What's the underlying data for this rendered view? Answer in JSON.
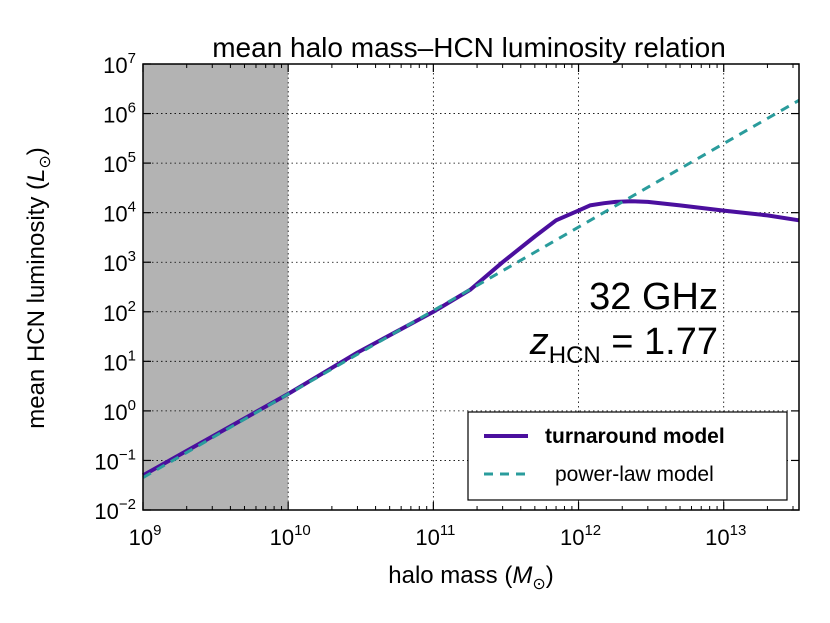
{
  "chart_data": {
    "type": "line",
    "title": "mean halo mass–HCN luminosity relation",
    "xlabel_prefix": "halo mass (",
    "xlabel_var": "M",
    "xlabel_sub": "⊙",
    "xlabel_suffix": ")",
    "ylabel_prefix": "mean HCN luminosity (",
    "ylabel_var": "L",
    "ylabel_sub": "⊙",
    "ylabel_suffix": ")",
    "x_scale": "log",
    "y_scale": "log",
    "xlim": [
      1000000000,
      33000000000000
    ],
    "ylim": [
      0.01,
      10000000
    ],
    "x_ticks": [
      {
        "value": 1000000000,
        "base": "10",
        "exp": "9"
      },
      {
        "value": 10000000000,
        "base": "10",
        "exp": "10"
      },
      {
        "value": 100000000000,
        "base": "10",
        "exp": "11"
      },
      {
        "value": 1000000000000,
        "base": "10",
        "exp": "12"
      },
      {
        "value": 10000000000000,
        "base": "10",
        "exp": "13"
      }
    ],
    "y_ticks": [
      {
        "value": 0.01,
        "base": "10",
        "exp": "−2"
      },
      {
        "value": 0.1,
        "base": "10",
        "exp": "−1"
      },
      {
        "value": 1,
        "base": "10",
        "exp": "0"
      },
      {
        "value": 10,
        "base": "10",
        "exp": "1"
      },
      {
        "value": 100,
        "base": "10",
        "exp": "2"
      },
      {
        "value": 1000,
        "base": "10",
        "exp": "3"
      },
      {
        "value": 10000,
        "base": "10",
        "exp": "4"
      },
      {
        "value": 100000,
        "base": "10",
        "exp": "5"
      },
      {
        "value": 1000000,
        "base": "10",
        "exp": "6"
      },
      {
        "value": 10000000,
        "base": "10",
        "exp": "7"
      }
    ],
    "grid": true,
    "shaded_region": {
      "x_from": 1000000000,
      "x_to": 10000000000,
      "color": "#b3b3b3"
    },
    "annotations": {
      "frequency": "32 GHz",
      "z_var": "z",
      "z_sub": "HCN",
      "z_value": " = 1.77"
    },
    "legend_position": "lower-right",
    "series": [
      {
        "name": "turnaround model",
        "color": "#4b0f9e",
        "style": "solid",
        "x": [
          1000000000,
          10000000000,
          30000000000,
          100000000000,
          180000000000,
          300000000000,
          500000000000,
          700000000000,
          1000000000000,
          1200000000000,
          1500000000000,
          1800000000000,
          2300000000000,
          3000000000000,
          5000000000000,
          10000000000000,
          20000000000000,
          33000000000000
        ],
        "y": [
          0.05,
          2.2,
          15,
          100,
          280,
          1000,
          3300,
          7000,
          11000,
          14000,
          15500,
          16500,
          17000,
          16500,
          14000,
          11000,
          8800,
          7000
        ]
      },
      {
        "name": "power-law model",
        "color": "#2a9c9c",
        "style": "dashed",
        "x": [
          1000000000,
          33000000000000
        ],
        "y": [
          0.045,
          1850000
        ]
      }
    ]
  }
}
